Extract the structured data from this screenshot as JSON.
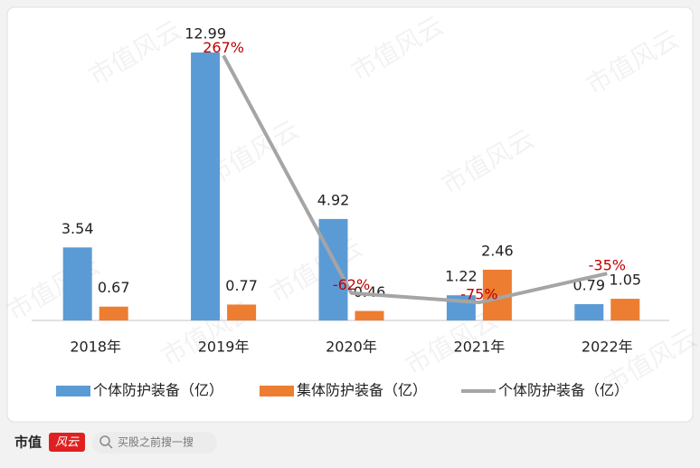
{
  "chart_data": {
    "type": "bar-line",
    "categories": [
      "2018年",
      "2019年",
      "2020年",
      "2021年",
      "2022年"
    ],
    "series": [
      {
        "name": "个体防护装备（亿）",
        "type": "bar",
        "color": "#5b9bd5",
        "values": [
          3.54,
          12.99,
          4.92,
          1.22,
          0.79
        ]
      },
      {
        "name": "集体防护装备（亿）",
        "type": "bar",
        "color": "#ed7d31",
        "values": [
          0.67,
          0.77,
          0.46,
          2.46,
          1.05
        ]
      },
      {
        "name": "个体防护装备（亿）",
        "type": "line",
        "axis": "y2",
        "color": "#a5a5a5",
        "values": [
          null,
          267,
          -62,
          -75,
          -35
        ],
        "value_labels": [
          null,
          "267%",
          "-62%",
          "-75%",
          "-35%"
        ],
        "label_color": "#c00000"
      }
    ],
    "ylim": [
      0,
      14
    ],
    "y2lim": [
      -100,
      300
    ],
    "legend": "bottom"
  },
  "watermark": "市值风云",
  "footer": {
    "brand": "市值",
    "logo": "风云",
    "search": "买股之前搜一搜"
  }
}
